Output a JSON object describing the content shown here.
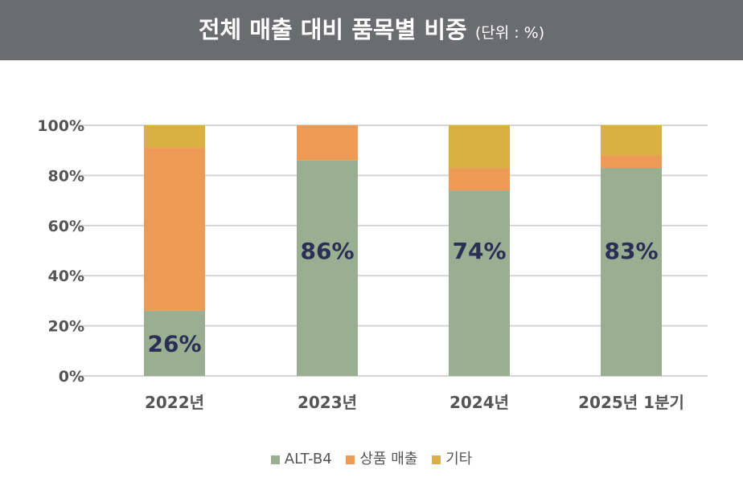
{
  "title": "전체 매출 대비 품목별 비중",
  "unit": "(단위 : %)",
  "chart_data": {
    "type": "bar",
    "stacked": true,
    "categories": [
      "2022년",
      "2023년",
      "2024년",
      "2025년 1분기"
    ],
    "series": [
      {
        "name": "ALT-B4",
        "values": [
          26,
          86,
          74,
          83
        ],
        "color": "#9aae91"
      },
      {
        "name": "상품 매출",
        "values": [
          65,
          14,
          9,
          5
        ],
        "color": "#ec9a55"
      },
      {
        "name": "기타",
        "values": [
          9,
          0,
          17,
          12
        ],
        "color": "#dab043"
      }
    ],
    "data_labels": [
      "26%",
      "86%",
      "74%",
      "83%"
    ],
    "yticks": [
      "0%",
      "20%",
      "40%",
      "60%",
      "80%",
      "100%"
    ],
    "ylim": [
      0,
      100
    ],
    "grid": true,
    "legend": "bottom"
  }
}
